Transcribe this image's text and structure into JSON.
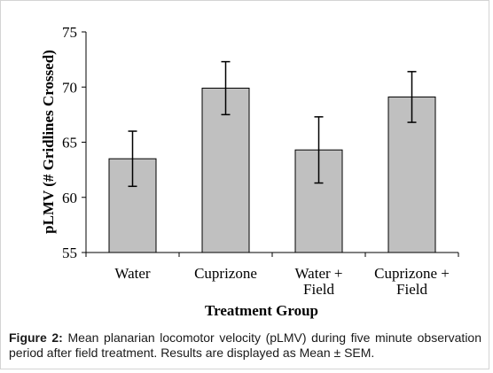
{
  "chart_data": {
    "type": "bar",
    "categories": [
      [
        "Water"
      ],
      [
        "Cuprizone"
      ],
      [
        "Water +",
        "Field"
      ],
      [
        "Cuprizone +",
        "Field"
      ]
    ],
    "values": [
      63.5,
      69.9,
      64.3,
      69.1
    ],
    "error": [
      2.5,
      2.4,
      3.0,
      2.3
    ],
    "xlabel": "Treatment Group",
    "ylabel": "pLMV (# Gridlines Crossed)",
    "ylim": [
      55,
      75
    ],
    "yticks": [
      55,
      60,
      65,
      70,
      75
    ],
    "grid": false,
    "legend": "none",
    "bar_color": "#c0c0c0",
    "bar_edge_color": "#000000"
  },
  "caption": {
    "label": "Figure 2:",
    "text": "Mean planarian locomotor velocity (pLMV) during five minute observation period after field treatment. Results are displayed as Mean ± SEM."
  }
}
